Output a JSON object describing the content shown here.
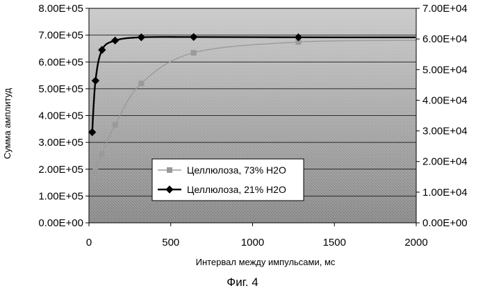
{
  "chart_data": {
    "type": "line",
    "title": "",
    "xlabel": "Интервал между импульсами, мс",
    "ylabel": "Сумма амплитуд",
    "y2label": "",
    "xlim": [
      0,
      2000
    ],
    "ylim": [
      0,
      800000
    ],
    "y2lim": [
      0,
      70000
    ],
    "x_ticks": [
      "0",
      "500",
      "1000",
      "1500",
      "2000"
    ],
    "y_ticks": [
      "0.00E+00",
      "1.00E+05",
      "2.00E+05",
      "3.00E+05",
      "4.00E+05",
      "5.00E+05",
      "6.00E+05",
      "7.00E+05",
      "8.00E+05"
    ],
    "y2_ticks": [
      "0.00E+00",
      "1.00E+04",
      "2.00E+04",
      "3.00E+04",
      "4.00E+04",
      "5.00E+04",
      "6.00E+04",
      "7.00E+04"
    ],
    "grid": "horizontal",
    "legend_position": "bottom-center",
    "series": [
      {
        "name": "Целлюлоза, 73% H2O",
        "axis": "right",
        "color": "#9a9a9a",
        "marker": "square",
        "x": [
          20,
          40,
          80,
          160,
          320,
          640,
          1280
        ],
        "y": [
          14000,
          17000,
          22500,
          32000,
          45500,
          55500,
          59000
        ]
      },
      {
        "name": "Целлюлоза, 21% H2O",
        "axis": "left",
        "color": "#000000",
        "marker": "diamond",
        "x": [
          20,
          40,
          80,
          160,
          320,
          640,
          1280
        ],
        "y": [
          338000,
          530000,
          645000,
          680000,
          692000,
          693000,
          692000
        ]
      }
    ]
  },
  "caption": "Фиг. 4"
}
